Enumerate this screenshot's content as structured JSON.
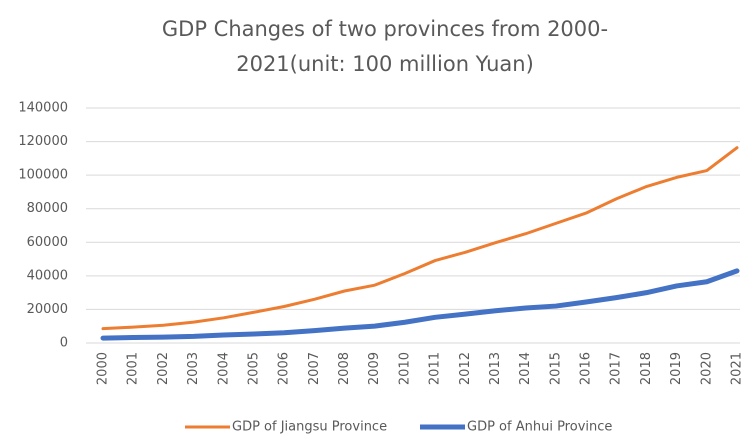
{
  "chart_data": {
    "type": "line",
    "title": "GDP Changes of two provinces from 2000-2021(unit: 100 million Yuan)",
    "categories": [
      "2000",
      "2001",
      "2002",
      "2003",
      "2004",
      "2005",
      "2006",
      "2007",
      "2008",
      "2009",
      "2010",
      "2011",
      "2012",
      "2013",
      "2014",
      "2015",
      "2016",
      "2017",
      "2018",
      "2019",
      "2020",
      "2021"
    ],
    "series": [
      {
        "name": "GDP of Jiangsu Province",
        "color": "#ed7d31",
        "values": [
          8554,
          9457,
          10607,
          12443,
          15004,
          18306,
          21742,
          26018,
          30982,
          34457,
          41425,
          49110,
          54058,
          59753,
          65088,
          71255,
          77388,
          85870,
          93207,
          98656,
          102719,
          116364
        ]
      },
      {
        "name": "GDP of Anhui Province",
        "color": "#4472c4",
        "values": [
          2902,
          3247,
          3520,
          3923,
          4759,
          5350,
          6112,
          7361,
          8852,
          10063,
          12359,
          15301,
          17212,
          19229,
          20849,
          22006,
          24408,
          27018,
          30007,
          34000,
          36500,
          42959
        ]
      }
    ],
    "ylim": [
      0,
      140000
    ],
    "yticks": [
      0,
      20000,
      40000,
      60000,
      80000,
      100000,
      120000,
      140000
    ],
    "grid": true,
    "legend": "bottom"
  }
}
